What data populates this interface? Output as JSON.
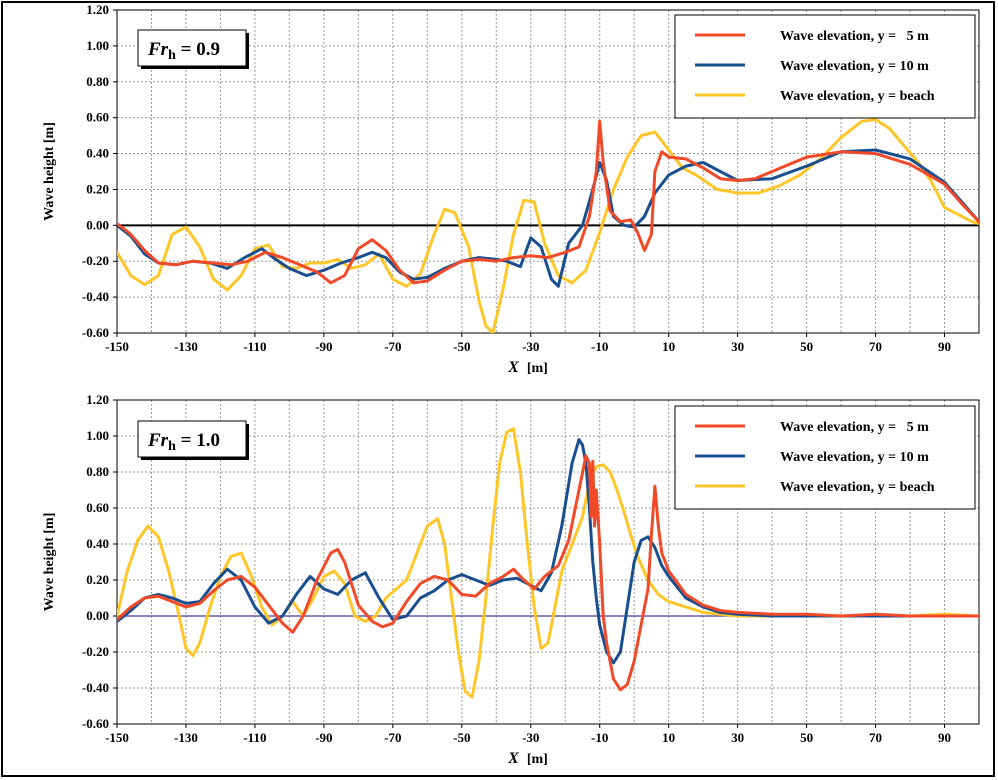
{
  "chart_data": [
    {
      "type": "line",
      "annotation_main": "Fr",
      "annotation_sub": "h",
      "annotation_value": " = 0.9",
      "xlabel_main": "X",
      "xlabel_unit": "[m]",
      "ylabel": "Wave height [m]",
      "xlim": [
        -150,
        100
      ],
      "ylim": [
        -0.6,
        1.2
      ],
      "xticks": [
        -150,
        -130,
        -110,
        -90,
        -70,
        -50,
        -30,
        -10,
        10,
        30,
        50,
        70,
        90
      ],
      "yticks": [
        -0.6,
        -0.4,
        -0.2,
        0,
        0.2,
        0.4,
        0.6,
        0.8,
        1.0,
        1.2
      ],
      "ytick_labels": [
        "-0.60",
        "-0.40",
        "-0.20",
        "0.00",
        "0.20",
        "0.40",
        "0.60",
        "0.80",
        "1.00",
        "1.20"
      ],
      "grid": true,
      "legend_position": "top-right",
      "zero_line_color": "#000000",
      "series": [
        {
          "name": "Wave elevation, y =   5 m",
          "color": "#f04a28",
          "x": [
            -150,
            -146,
            -142,
            -138,
            -133,
            -128,
            -122,
            -117,
            -112,
            -107,
            -102,
            -97,
            -92,
            -88,
            -84,
            -80,
            -76,
            -72,
            -68,
            -64,
            -60,
            -55,
            -50,
            -45,
            -40,
            -35,
            -30,
            -25,
            -20,
            -16,
            -13,
            -11,
            -10,
            -9,
            -7,
            -4,
            -1,
            1,
            3,
            5,
            6,
            8,
            10,
            15,
            20,
            25,
            30,
            35,
            40,
            50,
            60,
            70,
            80,
            90,
            95,
            100
          ],
          "y": [
            0.01,
            -0.05,
            -0.14,
            -0.21,
            -0.22,
            -0.2,
            -0.21,
            -0.22,
            -0.2,
            -0.15,
            -0.18,
            -0.22,
            -0.26,
            -0.32,
            -0.28,
            -0.13,
            -0.08,
            -0.14,
            -0.25,
            -0.32,
            -0.31,
            -0.25,
            -0.2,
            -0.19,
            -0.2,
            -0.18,
            -0.17,
            -0.18,
            -0.15,
            -0.12,
            0.05,
            0.3,
            0.58,
            0.35,
            0.08,
            0.02,
            0.03,
            -0.04,
            -0.14,
            -0.05,
            0.3,
            0.41,
            0.38,
            0.37,
            0.32,
            0.26,
            0.25,
            0.26,
            0.3,
            0.38,
            0.41,
            0.4,
            0.34,
            0.23,
            0.12,
            0.02
          ]
        },
        {
          "name": "Wave elevation, y = 10 m",
          "color": "#1a4f8f",
          "x": [
            -150,
            -146,
            -142,
            -138,
            -133,
            -128,
            -123,
            -118,
            -113,
            -108,
            -104,
            -100,
            -95,
            -90,
            -85,
            -80,
            -76,
            -72,
            -68,
            -64,
            -60,
            -55,
            -50,
            -45,
            -40,
            -37,
            -33,
            -30,
            -27,
            -24,
            -22,
            -19,
            -15,
            -12,
            -10,
            -8,
            -6,
            -3,
            0,
            3,
            6,
            10,
            15,
            20,
            25,
            30,
            40,
            50,
            60,
            70,
            80,
            90,
            95,
            100
          ],
          "y": [
            0.0,
            -0.06,
            -0.16,
            -0.21,
            -0.22,
            -0.2,
            -0.21,
            -0.24,
            -0.18,
            -0.13,
            -0.19,
            -0.24,
            -0.28,
            -0.25,
            -0.21,
            -0.18,
            -0.15,
            -0.18,
            -0.26,
            -0.3,
            -0.29,
            -0.24,
            -0.2,
            -0.18,
            -0.19,
            -0.2,
            -0.23,
            -0.07,
            -0.12,
            -0.3,
            -0.34,
            -0.1,
            0.0,
            0.2,
            0.35,
            0.25,
            0.05,
            0.0,
            -0.01,
            0.05,
            0.18,
            0.28,
            0.33,
            0.35,
            0.3,
            0.25,
            0.26,
            0.33,
            0.41,
            0.42,
            0.37,
            0.24,
            0.13,
            0.02
          ]
        },
        {
          "name": "Wave elevation, y = beach",
          "color": "#ffc628",
          "x": [
            -150,
            -146,
            -142,
            -138,
            -134,
            -130,
            -126,
            -122,
            -118,
            -114,
            -110,
            -106,
            -102,
            -98,
            -94,
            -90,
            -86,
            -82,
            -78,
            -74,
            -70,
            -66,
            -62,
            -58,
            -55,
            -52,
            -48,
            -45,
            -43,
            -41,
            -38,
            -35,
            -32,
            -29,
            -26,
            -22,
            -18,
            -14,
            -10,
            -6,
            -2,
            2,
            6,
            10,
            14,
            18,
            24,
            30,
            36,
            42,
            48,
            54,
            60,
            66,
            70,
            74,
            78,
            82,
            86,
            90,
            94,
            98,
            100
          ],
          "y": [
            -0.15,
            -0.28,
            -0.33,
            -0.28,
            -0.05,
            -0.01,
            -0.12,
            -0.3,
            -0.36,
            -0.28,
            -0.13,
            -0.11,
            -0.23,
            -0.24,
            -0.21,
            -0.21,
            -0.19,
            -0.24,
            -0.22,
            -0.16,
            -0.3,
            -0.34,
            -0.27,
            -0.05,
            0.09,
            0.07,
            -0.12,
            -0.42,
            -0.56,
            -0.6,
            -0.35,
            -0.05,
            0.14,
            0.13,
            -0.1,
            -0.28,
            -0.32,
            -0.25,
            -0.04,
            0.2,
            0.38,
            0.5,
            0.52,
            0.42,
            0.32,
            0.28,
            0.2,
            0.18,
            0.18,
            0.22,
            0.28,
            0.37,
            0.49,
            0.58,
            0.59,
            0.54,
            0.45,
            0.36,
            0.25,
            0.1,
            0.06,
            0.02,
            0.01
          ]
        }
      ]
    },
    {
      "type": "line",
      "annotation_main": "Fr",
      "annotation_sub": "h",
      "annotation_value": " = 1.0",
      "xlabel_main": "X",
      "xlabel_unit": "[m]",
      "ylabel": "Wave height [m]",
      "xlim": [
        -150,
        100
      ],
      "ylim": [
        -0.6,
        1.2
      ],
      "xticks": [
        -150,
        -130,
        -110,
        -90,
        -70,
        -50,
        -30,
        -10,
        10,
        30,
        50,
        70,
        90
      ],
      "yticks": [
        -0.6,
        -0.4,
        -0.2,
        0,
        0.2,
        0.4,
        0.6,
        0.8,
        1.0,
        1.2
      ],
      "ytick_labels": [
        "-0.60",
        "-0.40",
        "-0.20",
        "0.00",
        "0.20",
        "0.40",
        "0.60",
        "0.80",
        "1.00",
        "1.20"
      ],
      "grid": true,
      "legend_position": "top-right",
      "zero_line_color": "#6a5aa8",
      "series": [
        {
          "name": "Wave elevation, y =   5 m",
          "color": "#f04a28",
          "x": [
            -150,
            -146,
            -142,
            -138,
            -134,
            -130,
            -126,
            -122,
            -118,
            -114,
            -110,
            -106,
            -102,
            -99,
            -96,
            -92,
            -88,
            -86,
            -84,
            -80,
            -76,
            -73,
            -70,
            -66,
            -62,
            -58,
            -54,
            -50,
            -46,
            -42,
            -38,
            -35,
            -32,
            -29,
            -26,
            -22,
            -19,
            -16,
            -14,
            -13,
            -12.5,
            -12,
            -11.5,
            -11,
            -10,
            -9,
            -8,
            -6,
            -4,
            -2,
            0,
            2,
            4,
            5,
            6,
            7,
            8,
            10,
            15,
            20,
            25,
            30,
            40,
            50,
            60,
            70,
            80,
            90,
            100
          ],
          "y": [
            -0.02,
            0.05,
            0.1,
            0.11,
            0.08,
            0.05,
            0.07,
            0.14,
            0.2,
            0.22,
            0.16,
            0.06,
            -0.04,
            -0.09,
            0.0,
            0.2,
            0.35,
            0.37,
            0.3,
            0.06,
            -0.03,
            -0.06,
            -0.04,
            0.08,
            0.18,
            0.22,
            0.2,
            0.12,
            0.11,
            0.18,
            0.22,
            0.26,
            0.2,
            0.15,
            0.22,
            0.28,
            0.42,
            0.7,
            0.89,
            0.85,
            0.55,
            0.86,
            0.5,
            0.7,
            0.4,
            0.0,
            -0.15,
            -0.35,
            -0.41,
            -0.38,
            -0.25,
            -0.05,
            0.15,
            0.45,
            0.72,
            0.5,
            0.35,
            0.25,
            0.12,
            0.06,
            0.03,
            0.02,
            0.01,
            0.01,
            0.0,
            0.01,
            0.0,
            0.0,
            0.0
          ]
        },
        {
          "name": "Wave elevation, y = 10 m",
          "color": "#1a4f8f",
          "x": [
            -150,
            -146,
            -142,
            -138,
            -134,
            -130,
            -126,
            -122,
            -118,
            -114,
            -110,
            -106,
            -102,
            -98,
            -94,
            -90,
            -86,
            -82,
            -78,
            -74,
            -70,
            -66,
            -62,
            -58,
            -54,
            -50,
            -46,
            -42,
            -38,
            -34,
            -30,
            -27,
            -24,
            -21,
            -18,
            -16,
            -15,
            -14,
            -13,
            -12,
            -11,
            -10,
            -8,
            -6,
            -4,
            -2,
            0,
            2,
            4,
            6,
            8,
            10,
            15,
            20,
            25,
            30,
            40,
            50,
            60,
            70,
            80,
            90,
            100
          ],
          "y": [
            -0.03,
            0.03,
            0.1,
            0.12,
            0.1,
            0.07,
            0.08,
            0.18,
            0.26,
            0.2,
            0.05,
            -0.04,
            0.0,
            0.12,
            0.22,
            0.15,
            0.12,
            0.2,
            0.24,
            0.1,
            -0.02,
            0.0,
            0.1,
            0.14,
            0.2,
            0.23,
            0.2,
            0.17,
            0.2,
            0.21,
            0.17,
            0.14,
            0.24,
            0.5,
            0.85,
            0.98,
            0.95,
            0.85,
            0.6,
            0.3,
            0.1,
            -0.05,
            -0.2,
            -0.26,
            -0.2,
            0.05,
            0.3,
            0.42,
            0.44,
            0.38,
            0.28,
            0.22,
            0.1,
            0.05,
            0.02,
            0.01,
            0.0,
            0.0,
            0.0,
            0.0,
            0.0,
            0.0,
            0.0
          ]
        },
        {
          "name": "Wave elevation, y = beach",
          "color": "#ffc628",
          "x": [
            -150,
            -147,
            -144,
            -141,
            -138,
            -135,
            -132,
            -130,
            -128,
            -126,
            -123,
            -120,
            -117,
            -114,
            -111,
            -108,
            -105,
            -102,
            -99,
            -96,
            -93,
            -90,
            -87,
            -84,
            -81,
            -78,
            -75,
            -72,
            -69,
            -66,
            -63,
            -60,
            -57,
            -55,
            -53,
            -51,
            -49,
            -47,
            -45,
            -43,
            -41,
            -39,
            -37,
            -35,
            -33,
            -31,
            -29,
            -27,
            -25,
            -23,
            -21,
            -19,
            -17,
            -15,
            -13,
            -11,
            -9,
            -7,
            -5,
            -3,
            -1,
            1,
            4,
            7,
            10,
            15,
            20,
            30,
            40,
            50,
            60,
            70,
            80,
            90,
            100
          ],
          "y": [
            0.0,
            0.25,
            0.42,
            0.5,
            0.44,
            0.25,
            0.0,
            -0.18,
            -0.22,
            -0.15,
            0.05,
            0.22,
            0.33,
            0.35,
            0.22,
            0.05,
            -0.05,
            0.0,
            0.08,
            0.0,
            0.1,
            0.22,
            0.25,
            0.18,
            0.0,
            -0.03,
            0.0,
            0.1,
            0.15,
            0.2,
            0.35,
            0.5,
            0.54,
            0.4,
            0.1,
            -0.2,
            -0.42,
            -0.45,
            -0.25,
            0.1,
            0.5,
            0.85,
            1.02,
            1.04,
            0.8,
            0.4,
            0.05,
            -0.18,
            -0.15,
            0.05,
            0.25,
            0.35,
            0.45,
            0.55,
            0.75,
            0.83,
            0.84,
            0.8,
            0.7,
            0.58,
            0.45,
            0.33,
            0.2,
            0.12,
            0.08,
            0.05,
            0.02,
            0.0,
            0.0,
            0.0,
            0.0,
            0.0,
            0.0,
            0.01,
            0.0
          ]
        }
      ]
    }
  ]
}
